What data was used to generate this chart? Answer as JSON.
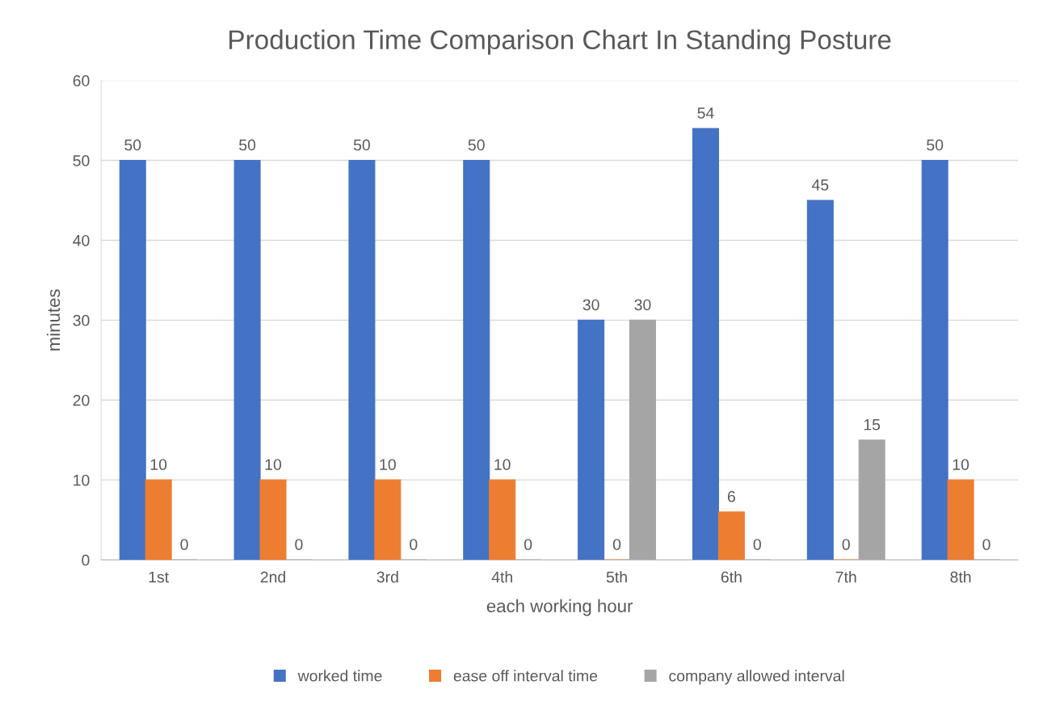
{
  "chart_data": {
    "type": "bar",
    "title": "Production Time Comparison Chart In Standing Posture",
    "xlabel": "each working hour",
    "ylabel": "minutes",
    "categories": [
      "1st",
      "2nd",
      "3rd",
      "4th",
      "5th",
      "6th",
      "7th",
      "8th"
    ],
    "series": [
      {
        "name": "worked time",
        "color": "#4472c4",
        "values": [
          50,
          50,
          50,
          50,
          30,
          54,
          45,
          50
        ]
      },
      {
        "name": "ease off interval time",
        "color": "#ed7d31",
        "values": [
          10,
          10,
          10,
          10,
          0,
          6,
          0,
          10
        ]
      },
      {
        "name": "company allowed interval",
        "color": "#a5a5a5",
        "values": [
          0,
          0,
          0,
          0,
          30,
          0,
          15,
          0
        ]
      }
    ],
    "ylim": [
      0,
      60
    ],
    "yticks": [
      0,
      10,
      20,
      30,
      40,
      50,
      60
    ],
    "grid": "y",
    "legend": "bottom",
    "data_labels": true
  }
}
